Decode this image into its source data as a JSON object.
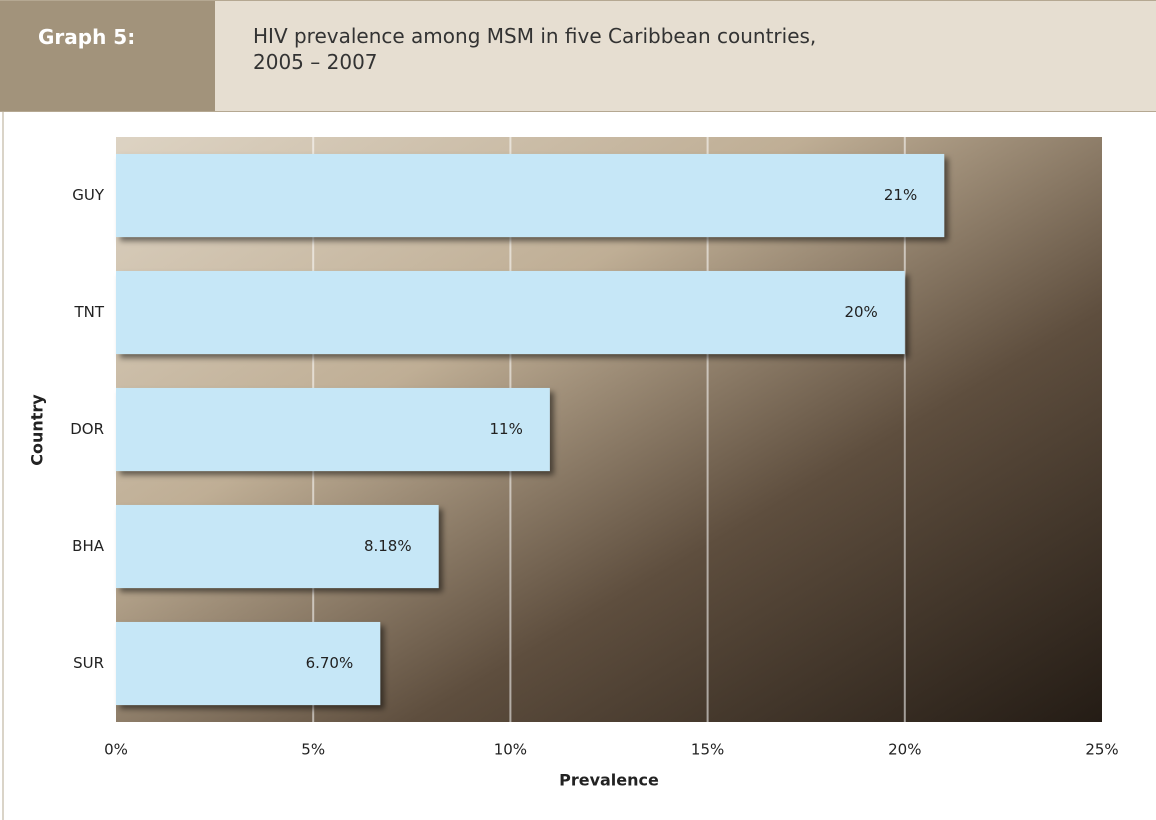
{
  "header": {
    "label": "Graph 5:"
  },
  "chart_data": {
    "type": "bar",
    "orientation": "horizontal",
    "title": "HIV prevalence among MSM in five Caribbean countries, 2005 – 2007",
    "x_label": "Prevalence",
    "y_label": "Country",
    "categories": [
      "GUY",
      "TNT",
      "DOR",
      "BHA",
      "SUR"
    ],
    "values": [
      21,
      20,
      11,
      8.18,
      6.7
    ],
    "value_labels": [
      "21%",
      "20%",
      "11%",
      "8.18%",
      "6.70%"
    ],
    "color": "#c6e7f7",
    "xlim": [
      0,
      25
    ],
    "xticks": [
      {
        "value": 0,
        "label": "0%"
      },
      {
        "value": 5,
        "label": "5%"
      },
      {
        "value": 10,
        "label": "10%"
      },
      {
        "value": 15,
        "label": "15%"
      },
      {
        "value": 20,
        "label": "20%"
      },
      {
        "value": 25,
        "label": "25%"
      }
    ],
    "grid": true
  }
}
